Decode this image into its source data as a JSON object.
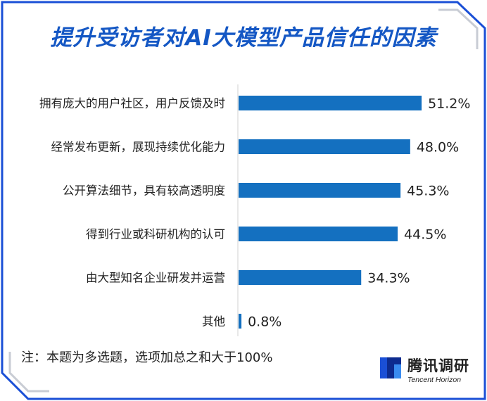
{
  "title": "提升受访者对AI大模型产品信任的因素",
  "chart_data": {
    "type": "bar",
    "orientation": "horizontal",
    "categories": [
      "拥有庞大的用户社区，用户反馈及时",
      "经常发布更新，展现持续优化能力",
      "公开算法细节，具有较高透明度",
      "得到行业或科研机构的认可",
      "由大型知名企业研发并运营",
      "其他"
    ],
    "values": [
      51.2,
      48.0,
      45.3,
      44.5,
      34.3,
      0.8
    ],
    "labels": [
      "51.2%",
      "48.0%",
      "45.3%",
      "44.5%",
      "34.3%",
      "0.8%"
    ],
    "xlim": [
      0,
      60
    ],
    "grid": false,
    "bar_color": "#1470c0"
  },
  "note": "注：本题为多选题，选项加总之和大于100%",
  "brand": {
    "name": "腾讯调研",
    "sub": "Tencent Horizon"
  },
  "colors": {
    "title": "#1457c4",
    "frame": "#1a4fd6",
    "bar": "#1470c0"
  }
}
